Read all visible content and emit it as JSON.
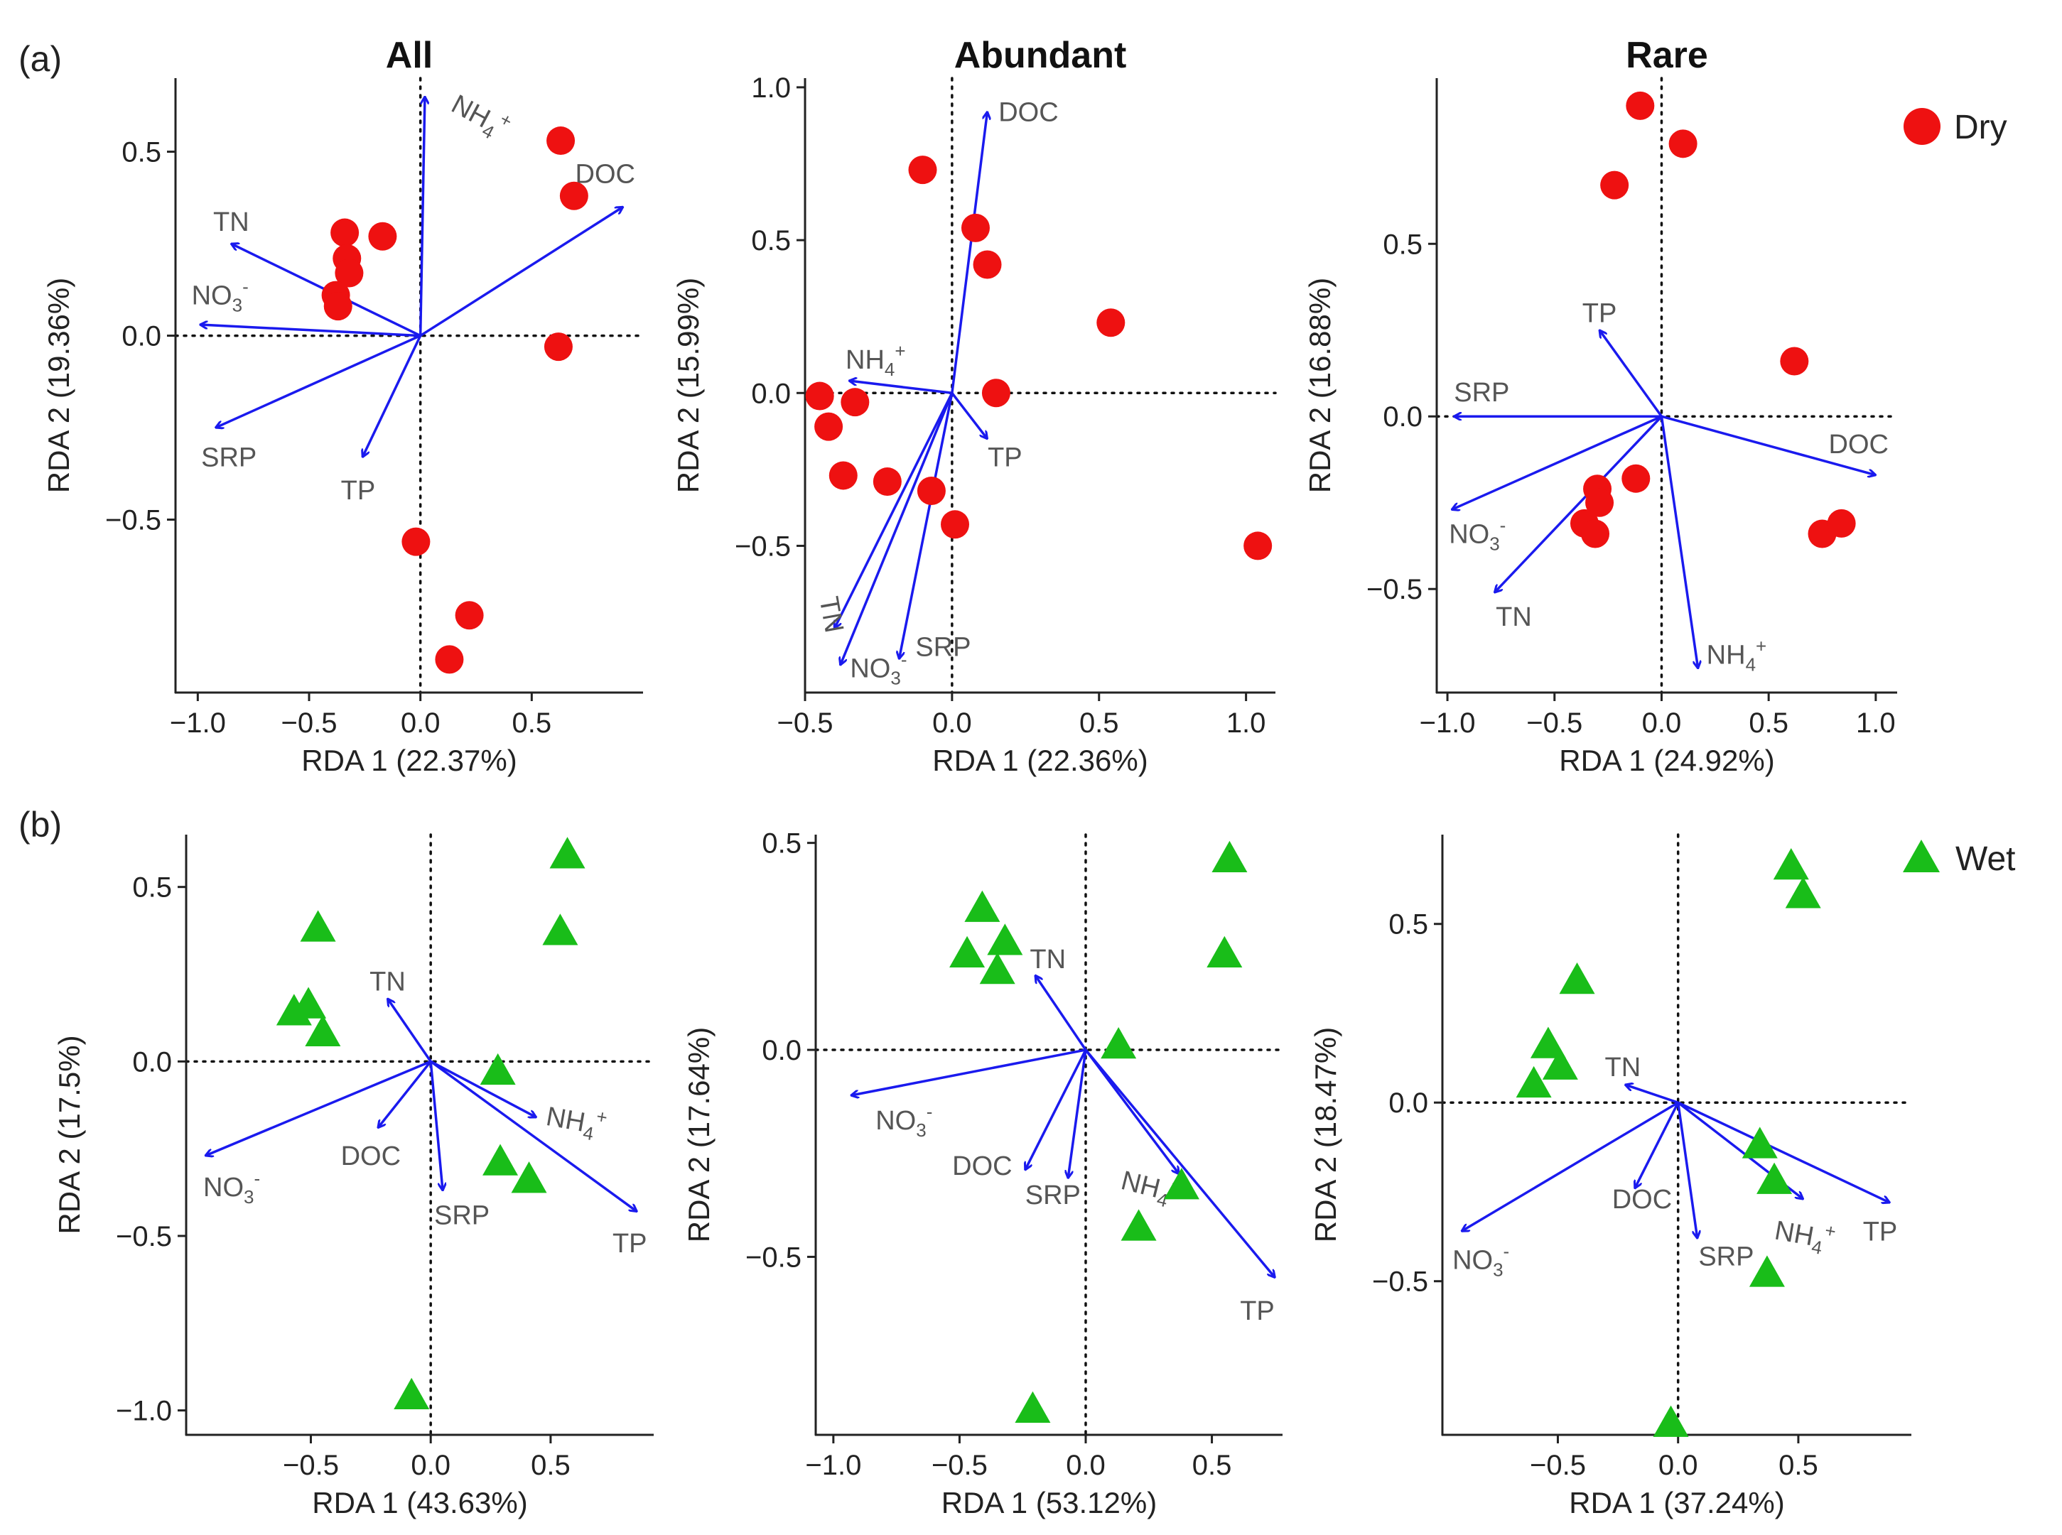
{
  "figure": {
    "row_labels": [
      "(a)",
      "(b)"
    ],
    "legend": [
      {
        "label": "Dry",
        "shape": "circle",
        "color": "#ee1111"
      },
      {
        "label": "Wet",
        "shape": "triangle",
        "color": "#19bd19"
      }
    ]
  },
  "colors": {
    "arrow": "#1a1aee",
    "arrow_label": "#555555",
    "dry": "#ee1111",
    "wet": "#19bd19",
    "axis": "#222222"
  },
  "chart_data": [
    {
      "type": "scatter",
      "title": "All",
      "group": "Dry",
      "xlabel": "RDA 1 (22.37%)",
      "ylabel": "RDA 2 (19.36%)",
      "xlim": [
        -1.1,
        1.0
      ],
      "ylim": [
        -0.97,
        0.7
      ],
      "xticks": [
        -1.0,
        -0.5,
        0.0,
        0.5
      ],
      "xtick_labels": [
        "−1.0",
        "−0.5",
        "0.0",
        "0.5"
      ],
      "yticks": [
        -0.5,
        0.0,
        0.5
      ],
      "ytick_labels": [
        "−0.5",
        "0.0",
        "0.5"
      ],
      "points": [
        {
          "x": 0.63,
          "y": 0.53
        },
        {
          "x": 0.69,
          "y": 0.38
        },
        {
          "x": 0.62,
          "y": -0.03
        },
        {
          "x": -0.34,
          "y": 0.28
        },
        {
          "x": -0.17,
          "y": 0.27
        },
        {
          "x": -0.33,
          "y": 0.21
        },
        {
          "x": -0.32,
          "y": 0.17
        },
        {
          "x": -0.38,
          "y": 0.11
        },
        {
          "x": -0.37,
          "y": 0.08
        },
        {
          "x": -0.02,
          "y": -0.56
        },
        {
          "x": 0.22,
          "y": -0.76
        },
        {
          "x": 0.13,
          "y": -0.88
        }
      ],
      "arrows": [
        {
          "label": "NH4+",
          "x": 0.02,
          "y": 0.65,
          "lx": 0.25,
          "ly": 0.6,
          "rot": 28
        },
        {
          "label": "DOC",
          "x": 0.91,
          "y": 0.35,
          "lx": 0.83,
          "ly": 0.44
        },
        {
          "label": "TN",
          "x": -0.85,
          "y": 0.25,
          "lx": -0.85,
          "ly": 0.31
        },
        {
          "label": "NO3-",
          "x": -0.99,
          "y": 0.03,
          "lx": -0.9,
          "ly": 0.11
        },
        {
          "label": "SRP",
          "x": -0.92,
          "y": -0.25,
          "lx": -0.86,
          "ly": -0.33
        },
        {
          "label": "TP",
          "x": -0.26,
          "y": -0.33,
          "lx": -0.28,
          "ly": -0.42
        }
      ]
    },
    {
      "type": "scatter",
      "title": "Abundant",
      "group": "Dry",
      "xlabel": "RDA 1 (22.36%)",
      "ylabel": "RDA 2 (15.99%)",
      "xlim": [
        -0.5,
        1.1
      ],
      "ylim": [
        -0.98,
        1.03
      ],
      "xticks": [
        -0.5,
        0.0,
        0.5,
        1.0
      ],
      "xtick_labels": [
        "−0.5",
        "0.0",
        "0.5",
        "1.0"
      ],
      "yticks": [
        -0.5,
        0.0,
        0.5,
        1.0
      ],
      "ytick_labels": [
        "−0.5",
        "0.0",
        "0.5",
        "1.0"
      ],
      "points": [
        {
          "x": -0.1,
          "y": 0.73
        },
        {
          "x": 0.08,
          "y": 0.54
        },
        {
          "x": 0.12,
          "y": 0.42
        },
        {
          "x": 0.54,
          "y": 0.23
        },
        {
          "x": 0.15,
          "y": 0.0
        },
        {
          "x": -0.45,
          "y": -0.01
        },
        {
          "x": -0.33,
          "y": -0.03
        },
        {
          "x": -0.42,
          "y": -0.11
        },
        {
          "x": -0.37,
          "y": -0.27
        },
        {
          "x": -0.22,
          "y": -0.29
        },
        {
          "x": -0.07,
          "y": -0.32
        },
        {
          "x": 0.01,
          "y": -0.43
        },
        {
          "x": 1.04,
          "y": -0.5
        }
      ],
      "arrows": [
        {
          "label": "DOC",
          "x": 0.12,
          "y": 0.92,
          "lx": 0.26,
          "ly": 0.92
        },
        {
          "label": "NH4+",
          "x": -0.35,
          "y": 0.04,
          "lx": -0.26,
          "ly": 0.11
        },
        {
          "label": "TP",
          "x": 0.12,
          "y": -0.15,
          "lx": 0.18,
          "ly": -0.21
        },
        {
          "label": "TN",
          "x": -0.4,
          "y": -0.77,
          "lx": -0.44,
          "ly": -0.7,
          "rot": 80
        },
        {
          "label": "NO3-",
          "x": -0.38,
          "y": -0.89,
          "lx": -0.25,
          "ly": -0.9
        },
        {
          "label": "SRP",
          "x": -0.18,
          "y": -0.87,
          "lx": -0.03,
          "ly": -0.83
        }
      ]
    },
    {
      "type": "scatter",
      "title": "Rare",
      "group": "Dry",
      "xlabel": "RDA 1 (24.92%)",
      "ylabel": "RDA 2 (16.88%)",
      "xlim": [
        -1.05,
        1.1
      ],
      "ylim": [
        -0.8,
        0.98
      ],
      "xticks": [
        -1.0,
        -0.5,
        0.0,
        0.5,
        1.0
      ],
      "xtick_labels": [
        "−1.0",
        "−0.5",
        "0.0",
        "0.5",
        "1.0"
      ],
      "yticks": [
        -0.5,
        0.0,
        0.5
      ],
      "ytick_labels": [
        "−0.5",
        "0.0",
        "0.5"
      ],
      "points": [
        {
          "x": -0.1,
          "y": 0.9
        },
        {
          "x": 0.1,
          "y": 0.79
        },
        {
          "x": -0.22,
          "y": 0.67
        },
        {
          "x": 0.62,
          "y": 0.16
        },
        {
          "x": -0.12,
          "y": -0.18
        },
        {
          "x": -0.3,
          "y": -0.21
        },
        {
          "x": -0.29,
          "y": -0.25
        },
        {
          "x": -0.36,
          "y": -0.31
        },
        {
          "x": -0.31,
          "y": -0.34
        },
        {
          "x": 0.75,
          "y": -0.34
        },
        {
          "x": 0.84,
          "y": -0.31
        }
      ],
      "arrows": [
        {
          "label": "TP",
          "x": -0.29,
          "y": 0.25,
          "lx": -0.29,
          "ly": 0.3
        },
        {
          "label": "SRP",
          "x": -0.97,
          "y": 0.0,
          "lx": -0.84,
          "ly": 0.07
        },
        {
          "label": "DOC",
          "x": 1.0,
          "y": -0.17,
          "lx": 0.92,
          "ly": -0.08
        },
        {
          "label": "NO3-",
          "x": -0.98,
          "y": -0.27,
          "lx": -0.86,
          "ly": -0.34
        },
        {
          "label": "TN",
          "x": -0.78,
          "y": -0.51,
          "lx": -0.69,
          "ly": -0.58
        },
        {
          "label": "NH4+",
          "x": 0.17,
          "y": -0.73,
          "lx": 0.35,
          "ly": -0.69
        }
      ]
    },
    {
      "type": "scatter",
      "title": "",
      "group": "Wet",
      "xlabel": "RDA 1 (43.63%)",
      "ylabel": "RDA 2 (17.5%)",
      "xlim": [
        -1.02,
        0.93
      ],
      "ylim": [
        -1.07,
        0.65
      ],
      "xticks": [
        -0.5,
        0.0,
        0.5
      ],
      "xtick_labels": [
        "−0.5",
        "0.0",
        "0.5"
      ],
      "yticks": [
        -1.0,
        -0.5,
        0.0,
        0.5
      ],
      "ytick_labels": [
        "−1.0",
        "−0.5",
        "0.0",
        "0.5"
      ],
      "points": [
        {
          "x": 0.57,
          "y": 0.59
        },
        {
          "x": 0.54,
          "y": 0.37
        },
        {
          "x": -0.47,
          "y": 0.38
        },
        {
          "x": -0.51,
          "y": 0.16
        },
        {
          "x": -0.57,
          "y": 0.14
        },
        {
          "x": -0.45,
          "y": 0.08
        },
        {
          "x": 0.28,
          "y": -0.03
        },
        {
          "x": 0.29,
          "y": -0.29
        },
        {
          "x": 0.41,
          "y": -0.34
        },
        {
          "x": -0.08,
          "y": -0.96
        }
      ],
      "arrows": [
        {
          "label": "TN",
          "x": -0.18,
          "y": 0.18,
          "lx": -0.18,
          "ly": 0.23
        },
        {
          "label": "NH4+",
          "x": 0.44,
          "y": -0.16,
          "lx": 0.6,
          "ly": -0.17,
          "rot": 10
        },
        {
          "label": "TP",
          "x": 0.86,
          "y": -0.43,
          "lx": 0.83,
          "ly": -0.52
        },
        {
          "label": "NO3-",
          "x": -0.94,
          "y": -0.27,
          "lx": -0.83,
          "ly": -0.36
        },
        {
          "label": "DOC",
          "x": -0.22,
          "y": -0.19,
          "lx": -0.25,
          "ly": -0.27
        },
        {
          "label": "SRP",
          "x": 0.05,
          "y": -0.37,
          "lx": 0.13,
          "ly": -0.44
        }
      ]
    },
    {
      "type": "scatter",
      "title": "",
      "group": "Wet",
      "xlabel": "RDA 1 (53.12%)",
      "ylabel": "RDA 2 (17.64%)",
      "xlim": [
        -1.07,
        0.78
      ],
      "ylim": [
        -0.93,
        0.52
      ],
      "xticks": [
        -1.0,
        -0.5,
        0.0,
        0.5
      ],
      "xtick_labels": [
        "−1.0",
        "−0.5",
        "0.0",
        "0.5"
      ],
      "yticks": [
        -0.5,
        0.0,
        0.5
      ],
      "ytick_labels": [
        "−0.5",
        "0.0",
        "0.5"
      ],
      "points": [
        {
          "x": 0.57,
          "y": 0.46
        },
        {
          "x": 0.55,
          "y": 0.23
        },
        {
          "x": -0.41,
          "y": 0.34
        },
        {
          "x": -0.47,
          "y": 0.23
        },
        {
          "x": -0.32,
          "y": 0.26
        },
        {
          "x": -0.35,
          "y": 0.19
        },
        {
          "x": 0.13,
          "y": 0.01
        },
        {
          "x": 0.38,
          "y": -0.33
        },
        {
          "x": 0.21,
          "y": -0.43
        },
        {
          "x": -0.21,
          "y": -0.87
        }
      ],
      "arrows": [
        {
          "label": "TN",
          "x": -0.2,
          "y": 0.18,
          "lx": -0.15,
          "ly": 0.22
        },
        {
          "label": "NO3-",
          "x": -0.93,
          "y": -0.11,
          "lx": -0.72,
          "ly": -0.17
        },
        {
          "label": "DOC",
          "x": -0.24,
          "y": -0.29,
          "lx": -0.41,
          "ly": -0.28
        },
        {
          "label": "SRP",
          "x": -0.07,
          "y": -0.31,
          "lx": -0.13,
          "ly": -0.35
        },
        {
          "label": "NH4+",
          "x": 0.37,
          "y": -0.3,
          "lx": 0.25,
          "ly": -0.33,
          "rot": 14
        },
        {
          "label": "TP",
          "x": 0.75,
          "y": -0.55,
          "lx": 0.68,
          "ly": -0.63
        }
      ]
    },
    {
      "type": "scatter",
      "title": "",
      "group": "Wet",
      "xlabel": "RDA 1 (37.24%)",
      "ylabel": "RDA 2 (18.47%)",
      "xlim": [
        -0.98,
        0.97
      ],
      "ylim": [
        -0.93,
        0.75
      ],
      "xticks": [
        -0.5,
        0.0,
        0.5
      ],
      "xtick_labels": [
        "−0.5",
        "0.0",
        "0.5"
      ],
      "yticks": [
        -0.5,
        0.0,
        0.5
      ],
      "ytick_labels": [
        "−0.5",
        "0.0",
        "0.5"
      ],
      "points": [
        {
          "x": 0.47,
          "y": 0.66
        },
        {
          "x": 0.52,
          "y": 0.58
        },
        {
          "x": -0.42,
          "y": 0.34
        },
        {
          "x": -0.54,
          "y": 0.16
        },
        {
          "x": -0.49,
          "y": 0.1
        },
        {
          "x": -0.6,
          "y": 0.05
        },
        {
          "x": 0.34,
          "y": -0.12
        },
        {
          "x": 0.4,
          "y": -0.22
        },
        {
          "x": 0.37,
          "y": -0.48
        },
        {
          "x": -0.03,
          "y": -0.9
        }
      ],
      "arrows": [
        {
          "label": "TN",
          "x": -0.22,
          "y": 0.05,
          "lx": -0.23,
          "ly": 0.1
        },
        {
          "label": "DOC",
          "x": -0.18,
          "y": -0.24,
          "lx": -0.15,
          "ly": -0.27
        },
        {
          "label": "SRP",
          "x": 0.08,
          "y": -0.38,
          "lx": 0.2,
          "ly": -0.43
        },
        {
          "label": "NH4+",
          "x": 0.52,
          "y": -0.27,
          "lx": 0.52,
          "ly": -0.37,
          "rot": 10
        },
        {
          "label": "TP",
          "x": 0.88,
          "y": -0.28,
          "lx": 0.84,
          "ly": -0.36
        },
        {
          "label": "NO3-",
          "x": -0.9,
          "y": -0.36,
          "lx": -0.82,
          "ly": -0.44
        }
      ]
    }
  ]
}
